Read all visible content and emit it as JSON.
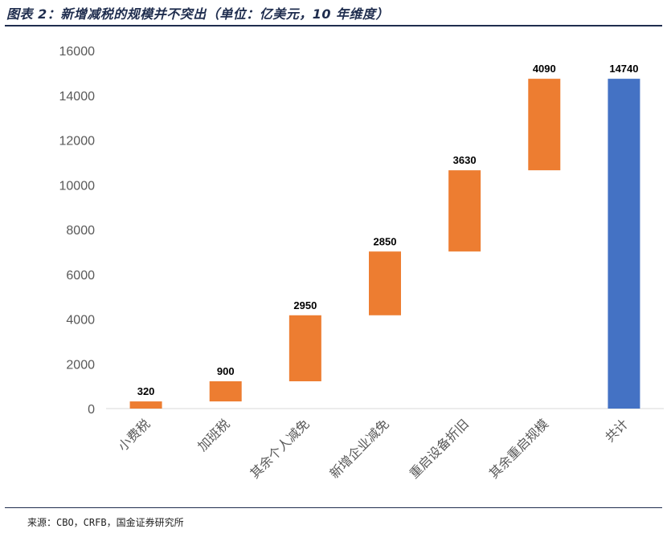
{
  "header": {
    "title": "图表 2：新增减税的规模并不突出（单位：亿美元，10 年维度）"
  },
  "footer": {
    "source": "来源：CBO，CRFB，国金证券研究所"
  },
  "colors": {
    "increment": "#ED7D31",
    "total": "#4472C4",
    "title": "#1f2d4e",
    "axis_text": "#595959"
  },
  "chart_data": {
    "type": "bar",
    "subtype": "waterfall",
    "title": "",
    "xlabel": "",
    "ylabel": "",
    "ylim": [
      0,
      16000
    ],
    "yticks": [
      0,
      2000,
      4000,
      6000,
      8000,
      10000,
      12000,
      14000,
      16000
    ],
    "grid": false,
    "legend": "none",
    "categories": [
      "小费税",
      "加班税",
      "其余个人减免",
      "新增企业减免",
      "重启设备折旧",
      "其余重启规模",
      "共计"
    ],
    "values": [
      320,
      900,
      2950,
      2850,
      3630,
      4090,
      14740
    ],
    "is_total": [
      false,
      false,
      false,
      false,
      false,
      false,
      true
    ]
  }
}
